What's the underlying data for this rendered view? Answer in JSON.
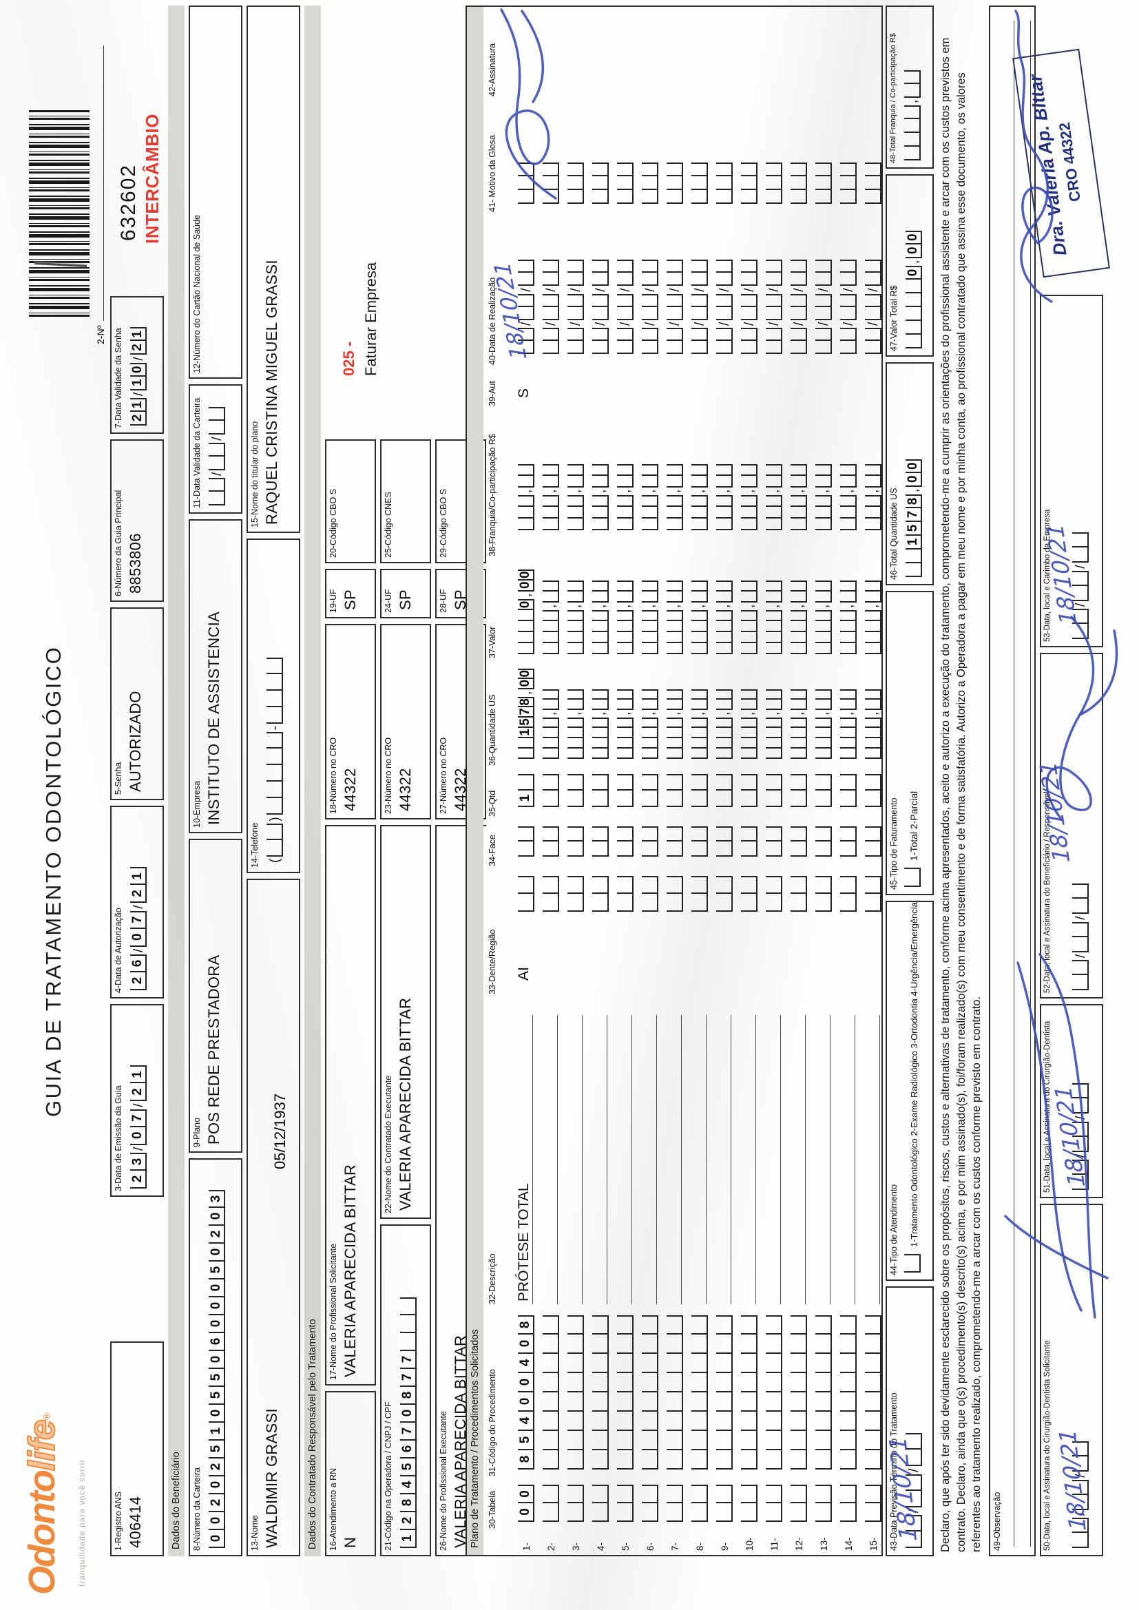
{
  "header": {
    "logo_main": "Odonto",
    "logo_accent": "life",
    "logo_reg": "®",
    "tagline": "tranquilidade para você sorrir",
    "form_title": "GUIA DE TRATAMENTO ODONTOLÓGICO",
    "guide_number": "632602",
    "intercambio": "INTERCÂMBIO",
    "field2_label": "2-Nº"
  },
  "sections": {
    "beneficiario": "Dados do Beneficiário",
    "contratado": "Dados do Contratado Responsável pelo Tratamento"
  },
  "fields": {
    "f1": {
      "label": "1-Registro ANS",
      "value": "406414"
    },
    "f3": {
      "label": "3-Data de Emissão da Guia",
      "comb": "23/07/21"
    },
    "f4": {
      "label": "4-Data de Autorização",
      "comb": "26/07/21"
    },
    "f5": {
      "label": "5-Senha",
      "value": "AUTORIZADO"
    },
    "f6": {
      "label": "6-Número da Guia Principal",
      "value": "8853806"
    },
    "f7": {
      "label": "7-Data Validade da Senha",
      "comb": "21/10/21"
    },
    "f8": {
      "label": "8-Número da Carteira",
      "comb": "00202510550600050203"
    },
    "f9": {
      "label": "9-Plano",
      "value": "POS REDE PRESTADORA"
    },
    "f10": {
      "label": "10-Empresa",
      "value": "INSTITUTO DE ASSISTENCIA"
    },
    "f11": {
      "label": "11-Data Validade da Carteira",
      "comb": "##/##/##"
    },
    "f12": {
      "label": "12-Número do Cartão Nacional de Saúde"
    },
    "f13": {
      "label": "13-Nome",
      "value": "WALDIMIR GRASSI",
      "extra": "05/12/1937"
    },
    "f14": {
      "label": "14-Telefone",
      "comb": "(##)#####-####"
    },
    "f15": {
      "label": "15-Nome do titular do plano",
      "value": "RAQUEL CRISTINA MIGUEL GRASSI"
    },
    "f16": {
      "label": "16-Atendimento a RN",
      "value": "N"
    },
    "f17": {
      "label": "17-Nome do Profissional Solicitante",
      "value": "VALERIA APARECIDA BITTAR"
    },
    "f18": {
      "label": "18-Número no CRO",
      "value": "44322"
    },
    "f19": {
      "label": "19-UF",
      "value": "SP"
    },
    "f20": {
      "label": "20-Código CBO S"
    },
    "f21": {
      "label": "21-Código na Operadora / CNPJ / CPF",
      "comb": "12845670877###"
    },
    "f22": {
      "label": "22-Nome do Contratado Executante",
      "value": "VALERIA APARECIDA BITTAR"
    },
    "f23": {
      "label": "23-Número no CRO",
      "value": "44322"
    },
    "f24": {
      "label": "24-UF",
      "value": "SP"
    },
    "f25": {
      "label": "25-Código CNES"
    },
    "f26": {
      "label": "26-Nome do Profissional Executante",
      "value": "VALERIA APARECIDA BITTAR"
    },
    "f27": {
      "label": "27-Número no CRO",
      "value": "44322"
    },
    "f28": {
      "label": "28-UF",
      "value": "SP"
    },
    "f29": {
      "label": "29-Código CBO S"
    }
  },
  "billing_note": {
    "code": "025 -",
    "text": "Faturar Empresa"
  },
  "table": {
    "section_title": "Plano de Tratamento / Procedimentos Solicitados",
    "headers": {
      "h30": "30-Tabela",
      "h31": "31-Código do Procedimento",
      "h32": "32-Descrição",
      "h33": "33-Dente/Região",
      "h34": "34-Face",
      "h35": "35-Qtd",
      "h36": "36-Quantidade US",
      "h37": "37-Valor",
      "h38": "38-Franquia/Co-participação R$",
      "h39": "39-Aut",
      "h40": "40-Data de Realização",
      "h41": "41- Motivo da Glosa",
      "h42": "42-Assinatura"
    },
    "row_count": 15,
    "row1": {
      "tabela": "00",
      "codigo": "85400408",
      "descricao": "PRÓTESE TOTAL",
      "dente": "AI",
      "qtd": "1",
      "quant_us": "1578,00",
      "valor": "0,00",
      "aut": "S",
      "data_hand": "18/10/21"
    }
  },
  "totals": {
    "f43": {
      "label": "43-Data Previsão Término do Tratamento",
      "comb": "##/##/##",
      "hand": "18/10/21"
    },
    "f44": {
      "label": "44-Tipo de Atendimento",
      "options": "1-Tratamento Odontológico  2-Exame Radiológico  3-Ortodontia  4-Urgência/Emergência"
    },
    "f45": {
      "label": "45-Tipo de Faturamento",
      "options": "1-Total  2-Parcial"
    },
    "f46": {
      "label": "46-Total Quantidade US",
      "comb": "##1578,00"
    },
    "f47": {
      "label": "47-Valor Total R$",
      "comb": "#####0,00"
    },
    "f48": {
      "label": "48-Total Franquia / Co-participação R$",
      "comb": "####,##"
    }
  },
  "declaration": {
    "line1": "Declaro, que após ter sido devidamente esclarecido sobre os propósitos, riscos, custos e alternativas de tratamento, conforme acima apresentados, aceito e autorizo a execução do tratamento, comprometendo-me a cumprir as orientações do profissional assistente e arcar com os custos previstos em",
    "line2": "contrato. Declaro, ainda que o(s) procedimento(s) descrito(s) acima, e por mim assinado(s), foi/foram realizado(s) com meu consentimento e de forma satisfatória. Autorizo a Operadora a pagar em meu nome e por minha conta, ao profissional contratado que assina esse documento, os valores",
    "line3": "referentes ao tratamento realizado, comprometendo-me a arcar com os custos conforme previsto em contrato."
  },
  "footer": {
    "f49": {
      "label": "49-Observação"
    },
    "f50": {
      "label": "50-Data, local e Assinatura do Cirurgião-Dentista Solicitante",
      "comb": "##/##/##",
      "hand": "18/10/21"
    },
    "f51": {
      "label": "51-Data, local e Assinatura do Cirurgião-Dentista",
      "comb": "##/##/##",
      "hand": "18/10/21"
    },
    "f52": {
      "label": "52-Data, local e Assinatura do Beneficiário / Responsável",
      "comb": "##/##/##",
      "hand": "18/10/21"
    },
    "f53": {
      "label": "53-Data, local e Carimbo da Empresa",
      "comb": "##/##/##",
      "hand": "18/10/21"
    },
    "stamp": {
      "line1": "Dra. Valeria Ap. Bittar",
      "line2": "CRO 44322"
    }
  },
  "colors": {
    "accent_orange": "#ee8a3d",
    "stamp_red": "#e23b32",
    "ink_blue": "#3d4eb2",
    "band_gray": "#d8d7d3"
  }
}
